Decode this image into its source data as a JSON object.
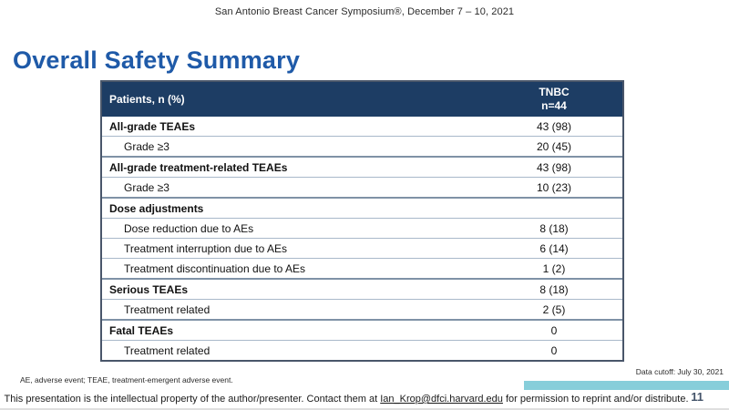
{
  "slide": {
    "conference_note": "San Antonio Breast Cancer Symposium®, December 7 – 10, 2021",
    "title": "Overall Safety Summary"
  },
  "table": {
    "header": {
      "col1": "Patients, n (%)",
      "col2_line1": "TNBC",
      "col2_line2": "n=44"
    },
    "rows": [
      {
        "label": "All-grade TEAEs",
        "value": "43 (98)"
      },
      {
        "label": "Grade ≥3",
        "value": "20 (45)"
      },
      {
        "label": "All-grade treatment-related TEAEs",
        "value": "43 (98)"
      },
      {
        "label": "Grade ≥3",
        "value": "10 (23)"
      },
      {
        "label": "Dose adjustments",
        "value": ""
      },
      {
        "label": "Dose reduction due to AEs",
        "value": "8 (18)"
      },
      {
        "label": "Treatment interruption due to AEs",
        "value": "6 (14)"
      },
      {
        "label": "Treatment discontinuation due to AEs",
        "value": "1 (2)"
      },
      {
        "label": "Serious TEAEs",
        "value": "8 (18)"
      },
      {
        "label": "Treatment related",
        "value": "2 (5)"
      },
      {
        "label": "Fatal TEAEs",
        "value": "0"
      },
      {
        "label": "Treatment related",
        "value": "0"
      }
    ]
  },
  "footnotes": {
    "data_cutoff": "Data cutoff: July 30, 2021",
    "abbreviations": "AE, adverse event; TEAE, treatment-emergent adverse event."
  },
  "footer": {
    "disclaimer_prefix": "This presentation is the intellectual property of the author/presenter. Contact them at ",
    "email": "Ian_Krop@dfci.harvard.edu",
    "disclaimer_suffix": " for permission to reprint and/or distribute.",
    "page_number": "11"
  },
  "colors": {
    "title_blue": "#1F5AA8",
    "table_header_navy": "#1D3D64",
    "accent_teal": "#87CEDA",
    "page_number_navy": "#44546A"
  }
}
